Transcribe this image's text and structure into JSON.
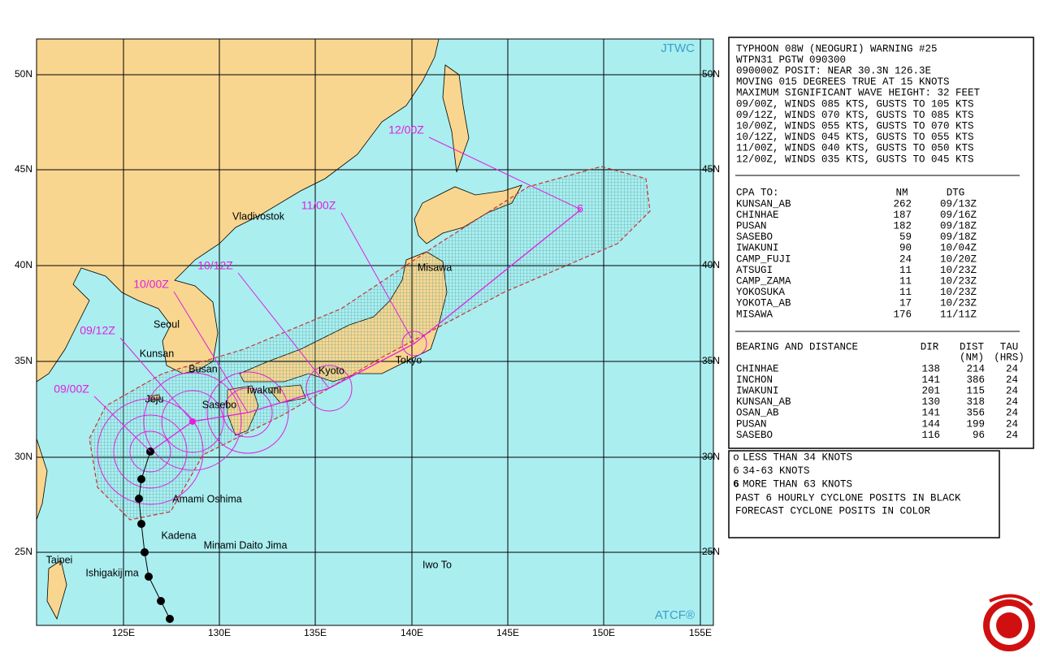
{
  "map": {
    "corner_labels": {
      "top": "JTWC",
      "bottom": "ATCF®"
    },
    "lat_labels": [
      "50N",
      "45N",
      "40N",
      "35N",
      "30N",
      "25N"
    ],
    "lon_labels": [
      "125E",
      "130E",
      "135E",
      "140E",
      "145E",
      "150E",
      "155E"
    ],
    "places": [
      "Vladivostok",
      "Misawa",
      "Seoul",
      "Kunsan",
      "Busan",
      "Jeju",
      "Iwakuni",
      "Sasebo",
      "Kyoto",
      "Tokyo",
      "Amami Oshima",
      "Kadena",
      "Minami Daito Jima",
      "Iwo To",
      "Taipei",
      "Ishigakijima"
    ],
    "forecast_labels": [
      "09/00Z",
      "09/12Z",
      "10/00Z",
      "10/12Z",
      "11/00Z",
      "12/00Z"
    ]
  },
  "warning": {
    "header_lines": [
      "TYPHOON 08W (NEOGURI) WARNING #25",
      "WTPN31 PGTW 090300",
      "090000Z POSIT: NEAR 30.3N 126.3E",
      "MOVING 015 DEGREES TRUE AT 15 KNOTS",
      "MAXIMUM SIGNIFICANT WAVE HEIGHT: 32 FEET",
      "09/00Z, WINDS 085 KTS, GUSTS TO 105 KTS",
      "09/12Z, WINDS 070 KTS, GUSTS TO 085 KTS",
      "10/00Z, WINDS 055 KTS, GUSTS TO 070 KTS",
      "10/12Z, WINDS 045 KTS, GUSTS TO 055 KTS",
      "11/00Z, WINDS 040 KTS, GUSTS TO 050 KTS",
      "12/00Z, WINDS 035 KTS, GUSTS TO 045 KTS"
    ],
    "cpa": {
      "title": "CPA TO:",
      "columns": [
        "NM",
        "DTG"
      ],
      "rows": [
        [
          "KUNSAN_AB",
          262,
          "09/13Z"
        ],
        [
          "CHINHAE",
          187,
          "09/16Z"
        ],
        [
          "PUSAN",
          182,
          "09/18Z"
        ],
        [
          "SASEBO",
          59,
          "09/18Z"
        ],
        [
          "IWAKUNI",
          90,
          "10/04Z"
        ],
        [
          "CAMP_FUJI",
          24,
          "10/20Z"
        ],
        [
          "ATSUGI",
          11,
          "10/23Z"
        ],
        [
          "CAMP_ZAMA",
          11,
          "10/23Z"
        ],
        [
          "YOKOSUKA",
          11,
          "10/23Z"
        ],
        [
          "YOKOTA_AB",
          17,
          "10/23Z"
        ],
        [
          "MISAWA",
          176,
          "11/11Z"
        ]
      ]
    },
    "bearing": {
      "title": "BEARING AND DISTANCE",
      "columns": [
        "DIR",
        "DIST",
        "TAU"
      ],
      "units": [
        "(NM)",
        "(HRS)"
      ],
      "rows": [
        [
          "CHINHAE",
          138,
          214,
          24
        ],
        [
          "INCHON",
          141,
          386,
          24
        ],
        [
          "IWAKUNI",
          201,
          115,
          24
        ],
        [
          "KUNSAN_AB",
          130,
          318,
          24
        ],
        [
          "OSAN_AB",
          141,
          356,
          24
        ],
        [
          "PUSAN",
          144,
          199,
          24
        ],
        [
          "SASEBO",
          116,
          96,
          24
        ]
      ]
    }
  },
  "legend": {
    "items": [
      "LESS THAN 34 KNOTS",
      "34-63 KNOTS",
      "MORE THAN 63 KNOTS"
    ],
    "notes": [
      "PAST 6 HOURLY CYCLONE POSITS IN BLACK",
      "FORECAST CYCLONE POSITS IN COLOR"
    ]
  }
}
